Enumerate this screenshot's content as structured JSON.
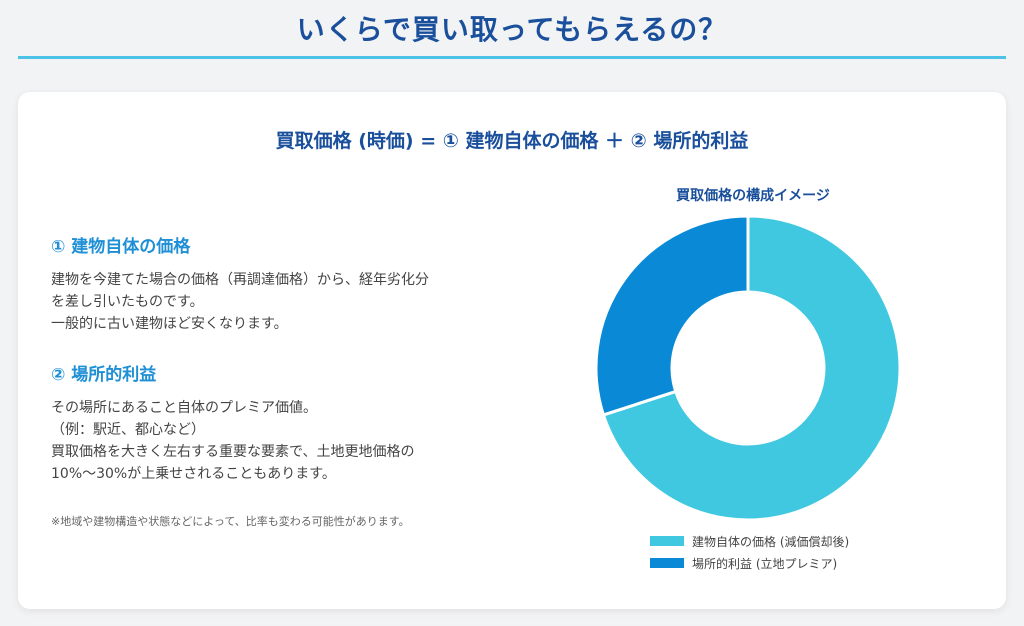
{
  "header": {
    "title": "いくらで買い取ってもらえるの？"
  },
  "card": {
    "formula": "買取価格 (時価) = ① 建物自体の価格 ＋ ② 場所的利益",
    "sections": [
      {
        "heading": "① 建物自体の価格",
        "lines": [
          "建物を今建てた場合の価格（再調達価格）から、経年劣化分",
          "を差し引いたものです。",
          "一般的に古い建物ほど安くなります。"
        ]
      },
      {
        "heading": "② 場所的利益",
        "lines": [
          "その場所にあること自体のプレミア価値。",
          "（例：駅近、都心など）",
          "買取価格を大きく左右する重要な要素で、土地更地価格の",
          "10%〜30%が上乗せされることもあります。"
        ]
      }
    ],
    "note": "※地域や建物構造や状態などによって、比率も変わる可能性があります。"
  },
  "colors": {
    "title": "#1a4f9c",
    "accent": "#1f8fd6",
    "rule": "#4cc3e6"
  },
  "chart_data": {
    "type": "pie",
    "title": "買取価格の構成イメージ",
    "donut": true,
    "legend_position": "bottom",
    "labels": [
      "建物自体の価格 (減価償却後)",
      "場所的利益 (立地プレミア)"
    ],
    "values": [
      70,
      30
    ],
    "colors": [
      "#40c8e0",
      "#0a8ad6"
    ]
  }
}
